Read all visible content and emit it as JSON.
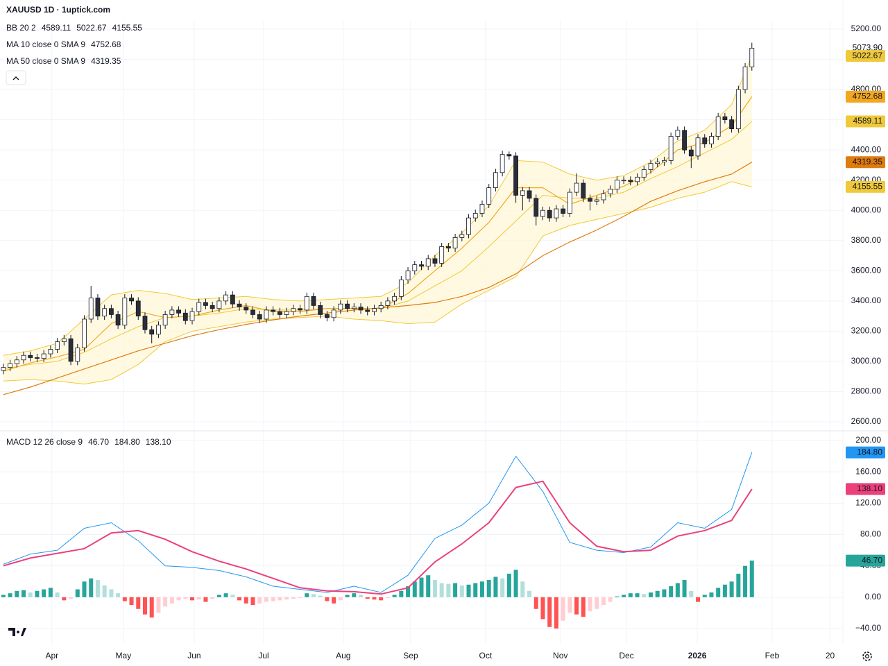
{
  "chart_data": [
    {
      "type": "candlestick",
      "title": "XAUUSD 1D · 1uptick.com",
      "xlim": [
        0,
        125
      ],
      "xticks": [
        {
          "value": 7.7,
          "label": "Apr"
        },
        {
          "value": 18.3,
          "label": "May"
        },
        {
          "value": 28.8,
          "label": "Jun"
        },
        {
          "value": 39.1,
          "label": "Jul"
        },
        {
          "value": 50.9,
          "label": "Aug"
        },
        {
          "value": 60.9,
          "label": "Sep"
        },
        {
          "value": 72.0,
          "label": "Oct"
        },
        {
          "value": 83.1,
          "label": "Nov"
        },
        {
          "value": 92.9,
          "label": "Dec"
        },
        {
          "value": 103.4,
          "label": "2026"
        },
        {
          "value": 114.5,
          "label": "Feb"
        },
        {
          "value": 123.1,
          "label": "20"
        }
      ],
      "ylim": [
        2545,
        5255
      ],
      "yticks": [
        {
          "value": 5200,
          "label": "5200.00"
        },
        {
          "value": 5000,
          "label": "5000.00"
        },
        {
          "value": 4800,
          "label": "4800.00"
        },
        {
          "value": 4600,
          "label": "4600.00"
        },
        {
          "value": 4400,
          "label": "4400.00"
        },
        {
          "value": 4200,
          "label": "4200.00"
        },
        {
          "value": 4000,
          "label": "4000.00"
        },
        {
          "value": 3800,
          "label": "3800.00"
        },
        {
          "value": 3600,
          "label": "3600.00"
        },
        {
          "value": 3400,
          "label": "3400.00"
        },
        {
          "value": 3200,
          "label": "3200.00"
        },
        {
          "value": 3000,
          "label": "3000.00"
        },
        {
          "value": 2800,
          "label": "2800.00"
        },
        {
          "value": 2600,
          "label": "2600.00"
        }
      ],
      "up_color": "#ffffff",
      "down_color": "#2a2e39",
      "wick_color": "#131722",
      "open": [
        2940,
        2960,
        2985,
        3010,
        3040,
        3025,
        3020,
        3050,
        3080,
        3130,
        3150,
        3000,
        3090,
        3280,
        3420,
        3300,
        3350,
        3310,
        3240,
        3420,
        3400,
        3300,
        3210,
        3180,
        3240,
        3310,
        3340,
        3320,
        3270,
        3330,
        3390,
        3370,
        3350,
        3400,
        3440,
        3380,
        3360,
        3340,
        3310,
        3280,
        3340,
        3330,
        3310,
        3330,
        3350,
        3340,
        3430,
        3370,
        3310,
        3290,
        3340,
        3380,
        3350,
        3360,
        3340,
        3330,
        3350,
        3370,
        3400,
        3430,
        3540,
        3600,
        3640,
        3630,
        3680,
        3650,
        3760,
        3750,
        3820,
        3840,
        3950,
        3980,
        4040,
        4150,
        4250,
        4370,
        4360,
        4100,
        4130,
        4080,
        3960,
        4000,
        3950,
        4010,
        3980,
        4120,
        4180,
        4080,
        4060,
        4070,
        4110,
        4140,
        4200,
        4200,
        4190,
        4220,
        4270,
        4310,
        4320,
        4330,
        4490,
        4530,
        4400,
        4360,
        4480,
        4440,
        4490,
        4620,
        4600,
        4540,
        4800,
        4950
      ],
      "high": [
        2985,
        3010,
        3035,
        3065,
        3065,
        3050,
        3075,
        3105,
        3155,
        3175,
        3175,
        3115,
        3305,
        3500,
        3445,
        3375,
        3375,
        3335,
        3445,
        3445,
        3425,
        3325,
        3235,
        3265,
        3335,
        3365,
        3365,
        3345,
        3355,
        3415,
        3415,
        3395,
        3425,
        3465,
        3465,
        3405,
        3385,
        3365,
        3335,
        3365,
        3365,
        3355,
        3355,
        3375,
        3375,
        3455,
        3455,
        3395,
        3335,
        3365,
        3405,
        3405,
        3385,
        3385,
        3365,
        3375,
        3395,
        3425,
        3455,
        3565,
        3625,
        3665,
        3665,
        3705,
        3705,
        3785,
        3785,
        3845,
        3865,
        3975,
        4005,
        4065,
        4175,
        4275,
        4395,
        4390,
        4385,
        4155,
        4155,
        4105,
        4025,
        4025,
        4035,
        4035,
        4145,
        4245,
        4205,
        4105,
        4095,
        4135,
        4165,
        4225,
        4225,
        4225,
        4245,
        4295,
        4335,
        4345,
        4355,
        4515,
        4555,
        4555,
        4425,
        4505,
        4505,
        4515,
        4645,
        4645,
        4625,
        4825,
        4975,
        5110
      ],
      "low": [
        2915,
        2935,
        2960,
        2985,
        3000,
        2995,
        2995,
        3025,
        3055,
        3105,
        2975,
        2975,
        3065,
        3255,
        3275,
        3275,
        3285,
        3215,
        3215,
        3375,
        3275,
        3185,
        3120,
        3155,
        3215,
        3285,
        3295,
        3245,
        3245,
        3305,
        3345,
        3325,
        3325,
        3375,
        3355,
        3335,
        3315,
        3285,
        3255,
        3255,
        3305,
        3285,
        3285,
        3305,
        3315,
        3315,
        3345,
        3285,
        3265,
        3265,
        3315,
        3325,
        3325,
        3315,
        3305,
        3305,
        3325,
        3345,
        3375,
        3405,
        3515,
        3575,
        3605,
        3605,
        3625,
        3625,
        3725,
        3725,
        3795,
        3815,
        3925,
        3955,
        4015,
        4125,
        4225,
        4335,
        4050,
        4000,
        4055,
        3900,
        3935,
        3925,
        3925,
        3955,
        3955,
        4095,
        4055,
        4000,
        4035,
        4045,
        4085,
        4115,
        4175,
        4165,
        4165,
        4195,
        4245,
        4285,
        4295,
        4305,
        4465,
        4375,
        4280,
        4335,
        4415,
        4415,
        4465,
        4575,
        4515,
        4515,
        4775,
        4925
      ],
      "close": [
        2960,
        2985,
        3010,
        3040,
        3025,
        3020,
        3050,
        3080,
        3130,
        3150,
        3000,
        3090,
        3280,
        3420,
        3300,
        3350,
        3310,
        3240,
        3420,
        3400,
        3300,
        3210,
        3180,
        3240,
        3310,
        3340,
        3320,
        3270,
        3330,
        3390,
        3370,
        3350,
        3400,
        3440,
        3380,
        3360,
        3340,
        3310,
        3280,
        3340,
        3330,
        3310,
        3330,
        3350,
        3340,
        3430,
        3370,
        3310,
        3290,
        3340,
        3380,
        3350,
        3360,
        3340,
        3330,
        3350,
        3370,
        3400,
        3430,
        3540,
        3600,
        3640,
        3630,
        3680,
        3650,
        3760,
        3750,
        3820,
        3840,
        3950,
        3980,
        4040,
        4150,
        4250,
        4370,
        4360,
        4100,
        4130,
        4080,
        3960,
        4000,
        3950,
        4010,
        3980,
        4120,
        4180,
        4080,
        4060,
        4070,
        4110,
        4140,
        4200,
        4200,
        4190,
        4220,
        4270,
        4310,
        4320,
        4330,
        4490,
        4530,
        4400,
        4360,
        4480,
        4440,
        4490,
        4620,
        4600,
        4540,
        4800,
        4950,
        5073.9
      ],
      "last_price": {
        "value": 5073.9,
        "label": "5073.90"
      },
      "overlay_x": [
        0.5,
        4.5,
        8.5,
        12.5,
        16.5,
        20.5,
        24.5,
        28.5,
        32.5,
        36.5,
        40.5,
        44.5,
        48.5,
        52.5,
        56.5,
        60.5,
        64.5,
        68.5,
        72.5,
        76.5,
        80.5,
        84.5,
        88.5,
        92.5,
        96.5,
        100.5,
        104.5,
        108.5,
        111.5
      ],
      "bb": {
        "label": "BB 20 2",
        "color": "#f0c93a",
        "fill": "#fff6d6",
        "basis": [
          2950,
          2980,
          3000,
          3060,
          3150,
          3230,
          3290,
          3300,
          3320,
          3350,
          3340,
          3340,
          3350,
          3350,
          3350,
          3400,
          3500,
          3600,
          3760,
          3930,
          4100,
          4080,
          4080,
          4120,
          4210,
          4290,
          4380,
          4470,
          4589.11
        ],
        "upper": [
          3040,
          3070,
          3120,
          3280,
          3440,
          3470,
          3450,
          3410,
          3420,
          3430,
          3410,
          3400,
          3410,
          3420,
          3430,
          3520,
          3700,
          3850,
          4030,
          4330,
          4320,
          4240,
          4200,
          4230,
          4320,
          4460,
          4530,
          4700,
          5022.67
        ],
        "lower": [
          2870,
          2880,
          2870,
          2850,
          2880,
          2980,
          3130,
          3200,
          3230,
          3260,
          3280,
          3290,
          3300,
          3280,
          3270,
          3250,
          3260,
          3380,
          3470,
          3560,
          3830,
          3900,
          3940,
          3980,
          4020,
          4080,
          4120,
          4190,
          4155.55
        ],
        "readout": [
          4589.11,
          5022.67,
          4155.55
        ]
      },
      "ma10": {
        "label": "MA 10 close 0 SMA 9",
        "color": "#f3a81f",
        "values": [
          2935,
          2990,
          3030,
          3080,
          3250,
          3330,
          3290,
          3300,
          3340,
          3370,
          3330,
          3330,
          3350,
          3350,
          3350,
          3450,
          3600,
          3750,
          3920,
          4150,
          4150,
          4040,
          4100,
          4160,
          4250,
          4400,
          4450,
          4560,
          4752.68
        ],
        "readout": 4752.68
      },
      "ma50": {
        "label": "MA 50 close 0 SMA 9",
        "color": "#e07b0e",
        "values": [
          2780,
          2830,
          2890,
          2950,
          3010,
          3070,
          3120,
          3170,
          3210,
          3245,
          3275,
          3300,
          3320,
          3340,
          3355,
          3370,
          3390,
          3430,
          3490,
          3580,
          3700,
          3790,
          3870,
          3960,
          4060,
          4130,
          4190,
          4240,
          4319.35
        ],
        "readout": 4319.35
      }
    },
    {
      "type": "macd",
      "label": "MACD 12 26 close 9",
      "ylim": [
        -59.5,
        211.5
      ],
      "yticks": [
        {
          "value": 200,
          "label": "200.00"
        },
        {
          "value": 160,
          "label": "160.00"
        },
        {
          "value": 120,
          "label": "120.00"
        },
        {
          "value": 80,
          "label": "80.00"
        },
        {
          "value": 40,
          "label": "40.00"
        },
        {
          "value": 0,
          "label": "0.00"
        },
        {
          "value": -40,
          "label": "−40.00"
        }
      ],
      "histogram": {
        "colors": [
          "#26a69a",
          "#b2dfdb",
          "#ff5252",
          "#ffcdd2"
        ],
        "values": [
          3,
          5,
          8,
          9,
          6,
          8,
          10,
          12,
          6,
          -4,
          -2,
          10,
          20,
          24,
          22,
          15,
          10,
          5,
          -5,
          -10,
          -15,
          -22,
          -26,
          -20,
          -12,
          -8,
          -4,
          -2,
          -4,
          -3,
          -6,
          -2,
          3,
          5,
          3,
          -4,
          -8,
          -10,
          -8,
          -6,
          -5,
          -4,
          -3,
          -2,
          -1,
          5,
          4,
          2,
          -5,
          -8,
          -4,
          3,
          5,
          3,
          -2,
          -3,
          -4,
          -1,
          3,
          8,
          14,
          20,
          25,
          28,
          22,
          18,
          17,
          18,
          15,
          16,
          18,
          20,
          22,
          26,
          24,
          30,
          35,
          20,
          8,
          -15,
          -28,
          -38,
          -40,
          -30,
          -20,
          -22,
          -25,
          -18,
          -15,
          -10,
          -6,
          1,
          3,
          5,
          5,
          4,
          6,
          8,
          10,
          14,
          18,
          22,
          8,
          -6,
          3,
          6,
          12,
          16,
          20,
          30,
          40,
          46.7
        ],
        "readout": {
          "value": 46.7,
          "label": "46.70"
        }
      },
      "macd": {
        "color": "#2196f3",
        "values": [
          42,
          55,
          60,
          88,
          95,
          72,
          40,
          38,
          34,
          26,
          14,
          10,
          6,
          14,
          6,
          28,
          75,
          92,
          120,
          180,
          135,
          70,
          60,
          57,
          64,
          95,
          88,
          112,
          184.8
        ],
        "readout": {
          "value": 184.8,
          "label": "184.80"
        }
      },
      "signal": {
        "color": "#ec407a",
        "values": [
          40,
          50,
          56,
          62,
          82,
          85,
          74,
          58,
          46,
          36,
          24,
          12,
          8,
          7,
          4,
          12,
          45,
          68,
          95,
          140,
          148,
          95,
          65,
          58,
          60,
          78,
          85,
          98,
          138.1
        ],
        "readout": {
          "value": 138.1,
          "label": "138.10"
        }
      }
    }
  ]
}
